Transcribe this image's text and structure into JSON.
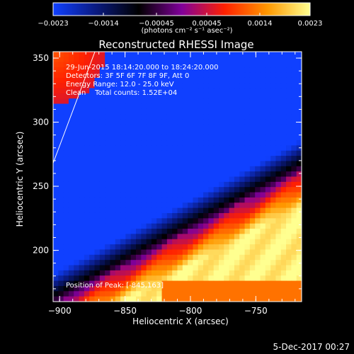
{
  "chart_data": {
    "type": "heatmap",
    "title": "Reconstructed RHESSI Image",
    "xlabel": "Heliocentric X (arcsec)",
    "ylabel": "Heliocentric Y (arcsec)",
    "xlim": [
      -905,
      -715
    ],
    "ylim": [
      160,
      355
    ],
    "xticks": [
      -900,
      -850,
      -800,
      -750
    ],
    "xtick_labels": [
      "−900",
      "−850",
      "−800",
      "−750"
    ],
    "yticks": [
      200,
      250,
      300,
      350
    ],
    "ytick_labels": [
      "200",
      "250",
      "300",
      "350"
    ],
    "colorbar": {
      "range": [
        -0.0023,
        0.0023
      ],
      "ticks": [
        -0.0023,
        -0.0014,
        -0.00045,
        0.00045,
        0.0014,
        0.0023
      ],
      "tick_labels": [
        "−0.0023",
        "−0.0014",
        "−0.00045",
        "0.00045",
        "0.0014",
        "0.0023"
      ],
      "unit_label": "(photons cm⁻² s⁻¹ asec⁻²)",
      "colormap": [
        "#1040ff",
        "#0a1a80",
        "#000000",
        "#80009a",
        "#ff2000",
        "#ff9800",
        "#ffff90"
      ]
    },
    "annotations": [
      "29-Jun-2015 18:14:20.000 to 18:24:20.000",
      "Detectors: 3F 5F 6F 7F 8F 9F, Att 0",
      "Energy Range: 12.0 - 25.0 keV",
      "Clean    Total counts: 1.52E+04",
      "Position of Peak: [-845,163]"
    ],
    "limb_line": [
      [
        -905,
        268
      ],
      [
        -873,
        355
      ]
    ]
  },
  "footer": {
    "date": "5-Dec-2017 00:27"
  }
}
